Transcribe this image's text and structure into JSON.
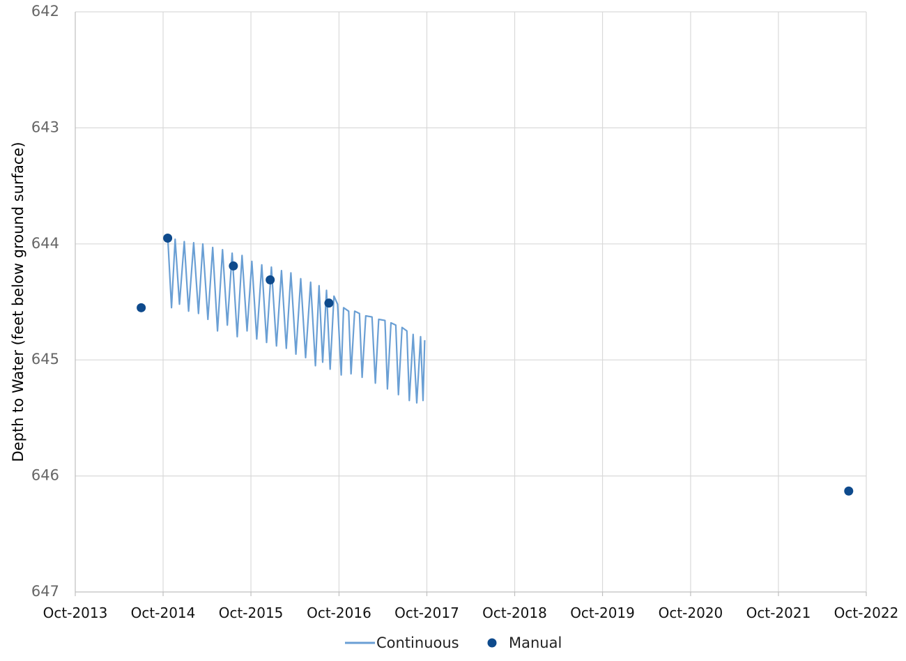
{
  "chart_data": {
    "type": "line",
    "ylabel": "Depth to Water (feet below ground surface)",
    "xlabel": "",
    "ylim": [
      642,
      647
    ],
    "y_inverted": false,
    "y_ticks": [
      "642",
      "643",
      "644",
      "645",
      "646",
      "647"
    ],
    "x_range": [
      "2013-10-01",
      "2022-10-01"
    ],
    "x_ticks": [
      {
        "date": "2013-10-01",
        "label": "Oct-2013"
      },
      {
        "date": "2014-10-01",
        "label": "Oct-2014"
      },
      {
        "date": "2015-10-01",
        "label": "Oct-2015"
      },
      {
        "date": "2016-10-01",
        "label": "Oct-2016"
      },
      {
        "date": "2017-10-01",
        "label": "Oct-2017"
      },
      {
        "date": "2018-10-01",
        "label": "Oct-2018"
      },
      {
        "date": "2019-10-01",
        "label": "Oct-2019"
      },
      {
        "date": "2020-10-01",
        "label": "Oct-2020"
      },
      {
        "date": "2021-10-01",
        "label": "Oct-2021"
      },
      {
        "date": "2022-10-01",
        "label": "Oct-2022"
      }
    ],
    "grid": true,
    "legend_position": "bottom",
    "series": [
      {
        "name": "Continuous",
        "kind": "line",
        "color": "#6a9fd4",
        "points": [
          [
            "2014-10-20",
            643.93
          ],
          [
            "2014-11-05",
            644.55
          ],
          [
            "2014-11-20",
            643.96
          ],
          [
            "2014-12-08",
            644.52
          ],
          [
            "2014-12-28",
            643.98
          ],
          [
            "2015-01-15",
            644.58
          ],
          [
            "2015-02-05",
            643.99
          ],
          [
            "2015-02-25",
            644.6
          ],
          [
            "2015-03-15",
            644.0
          ],
          [
            "2015-04-05",
            644.65
          ],
          [
            "2015-04-25",
            644.03
          ],
          [
            "2015-05-15",
            644.75
          ],
          [
            "2015-06-05",
            644.05
          ],
          [
            "2015-06-25",
            644.7
          ],
          [
            "2015-07-15",
            644.08
          ],
          [
            "2015-08-05",
            644.8
          ],
          [
            "2015-08-25",
            644.1
          ],
          [
            "2015-09-15",
            644.75
          ],
          [
            "2015-10-05",
            644.15
          ],
          [
            "2015-10-25",
            644.82
          ],
          [
            "2015-11-15",
            644.18
          ],
          [
            "2015-12-05",
            644.85
          ],
          [
            "2015-12-25",
            644.2
          ],
          [
            "2016-01-15",
            644.88
          ],
          [
            "2016-02-05",
            644.23
          ],
          [
            "2016-02-25",
            644.9
          ],
          [
            "2016-03-15",
            644.25
          ],
          [
            "2016-04-05",
            644.95
          ],
          [
            "2016-04-25",
            644.3
          ],
          [
            "2016-05-15",
            644.98
          ],
          [
            "2016-06-05",
            644.33
          ],
          [
            "2016-06-25",
            645.05
          ],
          [
            "2016-07-10",
            644.36
          ],
          [
            "2016-07-25",
            645.02
          ],
          [
            "2016-08-10",
            644.4
          ],
          [
            "2016-08-25",
            645.08
          ],
          [
            "2016-09-10",
            644.45
          ],
          [
            "2016-09-25",
            644.52
          ],
          [
            "2016-10-10",
            645.13
          ],
          [
            "2016-10-20",
            644.55
          ],
          [
            "2016-11-10",
            644.58
          ],
          [
            "2016-11-20",
            645.12
          ],
          [
            "2016-12-05",
            644.58
          ],
          [
            "2016-12-25",
            644.6
          ],
          [
            "2017-01-05",
            645.15
          ],
          [
            "2017-01-20",
            644.62
          ],
          [
            "2017-02-15",
            644.63
          ],
          [
            "2017-03-01",
            645.2
          ],
          [
            "2017-03-15",
            644.65
          ],
          [
            "2017-04-10",
            644.66
          ],
          [
            "2017-04-20",
            645.25
          ],
          [
            "2017-05-05",
            644.68
          ],
          [
            "2017-05-25",
            644.7
          ],
          [
            "2017-06-05",
            645.3
          ],
          [
            "2017-06-20",
            644.72
          ],
          [
            "2017-07-10",
            644.75
          ],
          [
            "2017-07-20",
            645.35
          ],
          [
            "2017-08-05",
            644.78
          ],
          [
            "2017-08-20",
            645.37
          ],
          [
            "2017-09-05",
            644.8
          ],
          [
            "2017-09-15",
            645.35
          ],
          [
            "2017-09-22",
            644.83
          ]
        ]
      },
      {
        "name": "Manual",
        "kind": "marker",
        "color": "#0e4a8c",
        "points": [
          [
            "2014-07-02",
            644.55
          ],
          [
            "2014-10-20",
            643.95
          ],
          [
            "2015-07-20",
            644.19
          ],
          [
            "2015-12-20",
            644.31
          ],
          [
            "2016-08-20",
            644.51
          ],
          [
            "2022-07-20",
            646.13
          ]
        ]
      }
    ]
  }
}
